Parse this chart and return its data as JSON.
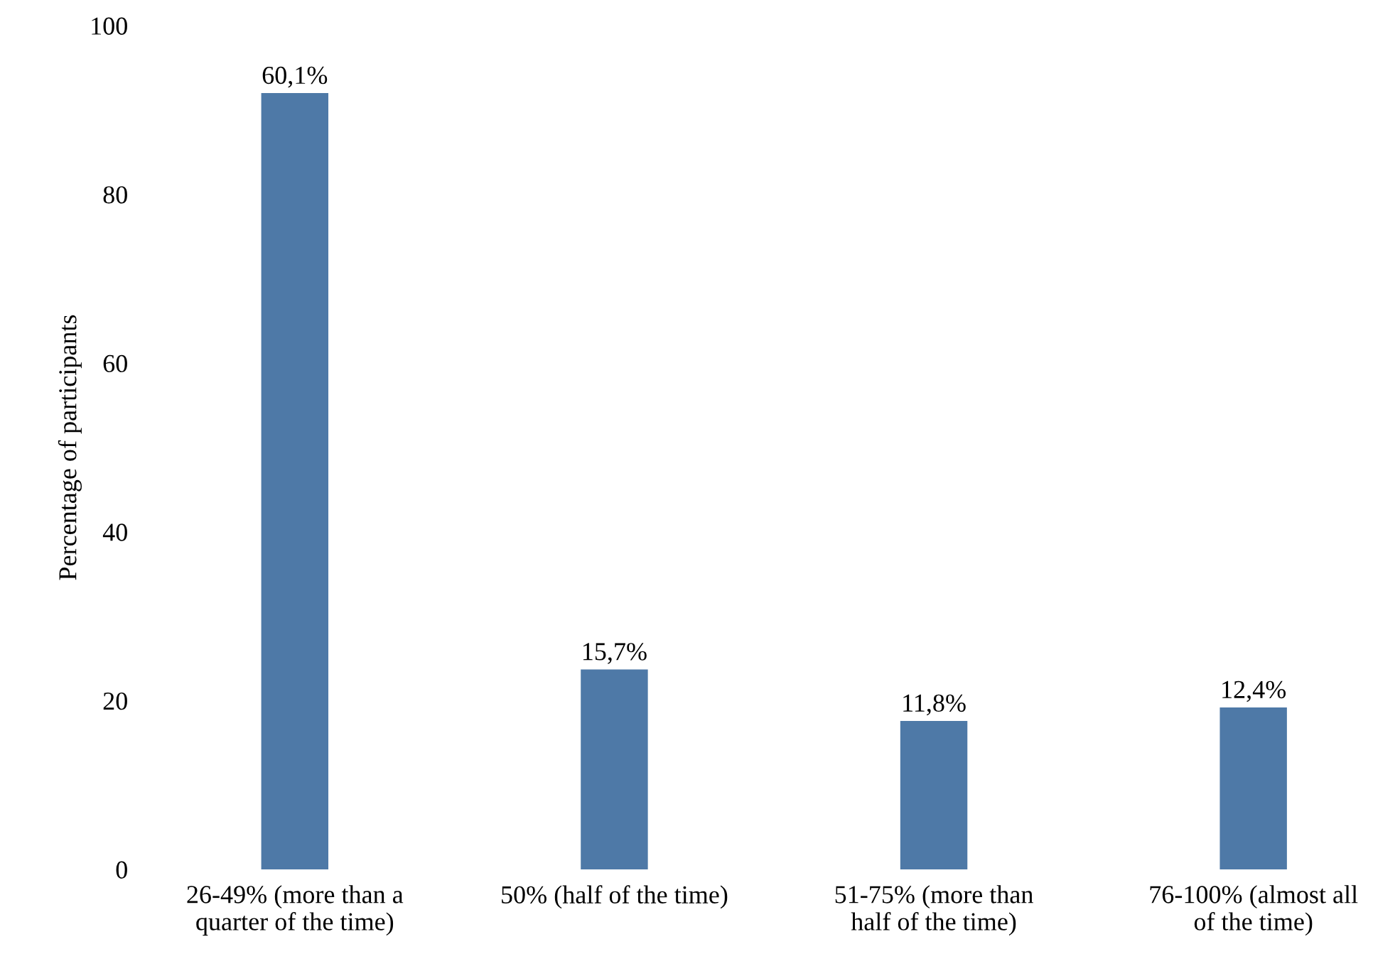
{
  "chart_data": {
    "type": "bar",
    "ylabel": "Percentage of participants",
    "categories": [
      "26-49% (more than a\nquarter of the time)",
      "50% (half of the time)",
      "51-75% (more than\nhalf of the time)",
      "76-100% (almost all\nof the time)"
    ],
    "values": [
      92,
      23.7,
      17.6,
      19.2
    ],
    "annotations": [
      {
        "text": "60,1%",
        "x": "26-49% (more than a\nquarter of the time)",
        "y": 92
      },
      {
        "text": "15,7%",
        "x": "50% (half of the time)",
        "y": 23.7
      },
      {
        "text": "11,8%",
        "x": "51-75% (more than\nhalf of the time)",
        "y": 17.6
      },
      {
        "text": "12,4%",
        "x": "76-100% (almost all\nof the time)",
        "y": 19.2
      }
    ],
    "color": "#4e79a7",
    "ylim": [
      0,
      100
    ],
    "yticks": [
      0,
      20,
      40,
      60,
      80,
      100
    ],
    "grid": false,
    "legend": false
  }
}
